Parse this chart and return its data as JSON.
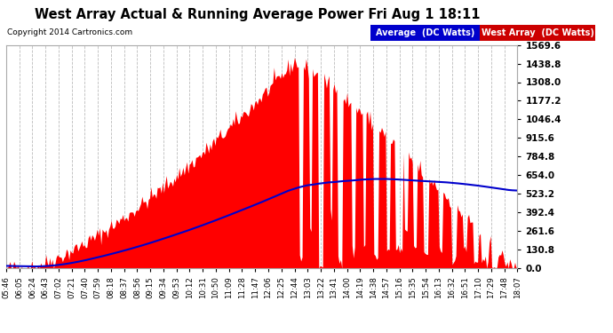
{
  "title": "West Array Actual & Running Average Power Fri Aug 1 18:11",
  "copyright": "Copyright 2014 Cartronics.com",
  "ylabel_right_ticks": [
    0.0,
    130.8,
    261.6,
    392.4,
    523.2,
    654.0,
    784.8,
    915.6,
    1046.4,
    1177.2,
    1308.0,
    1438.8,
    1569.6
  ],
  "ymax": 1569.6,
  "bg_color": "#ffffff",
  "plot_bg_color": "#ffffff",
  "grid_color": "#bbbbbb",
  "bar_color": "#ff0000",
  "line_color": "#0000cc",
  "legend_avg_bg": "#0000cc",
  "legend_west_bg": "#cc0000",
  "legend_avg_text": "Average  (DC Watts)",
  "legend_west_text": "West Array  (DC Watts)",
  "x_tick_labels": [
    "05:46",
    "06:05",
    "06:24",
    "06:43",
    "07:02",
    "07:21",
    "07:40",
    "07:59",
    "08:18",
    "08:37",
    "08:56",
    "09:15",
    "09:34",
    "09:53",
    "10:12",
    "10:31",
    "10:50",
    "11:09",
    "11:28",
    "11:47",
    "12:06",
    "12:25",
    "12:44",
    "13:03",
    "13:22",
    "13:41",
    "14:00",
    "14:19",
    "14:38",
    "14:57",
    "15:16",
    "15:35",
    "15:54",
    "16:13",
    "16:32",
    "16:51",
    "17:10",
    "17:29",
    "17:48",
    "18:07"
  ]
}
